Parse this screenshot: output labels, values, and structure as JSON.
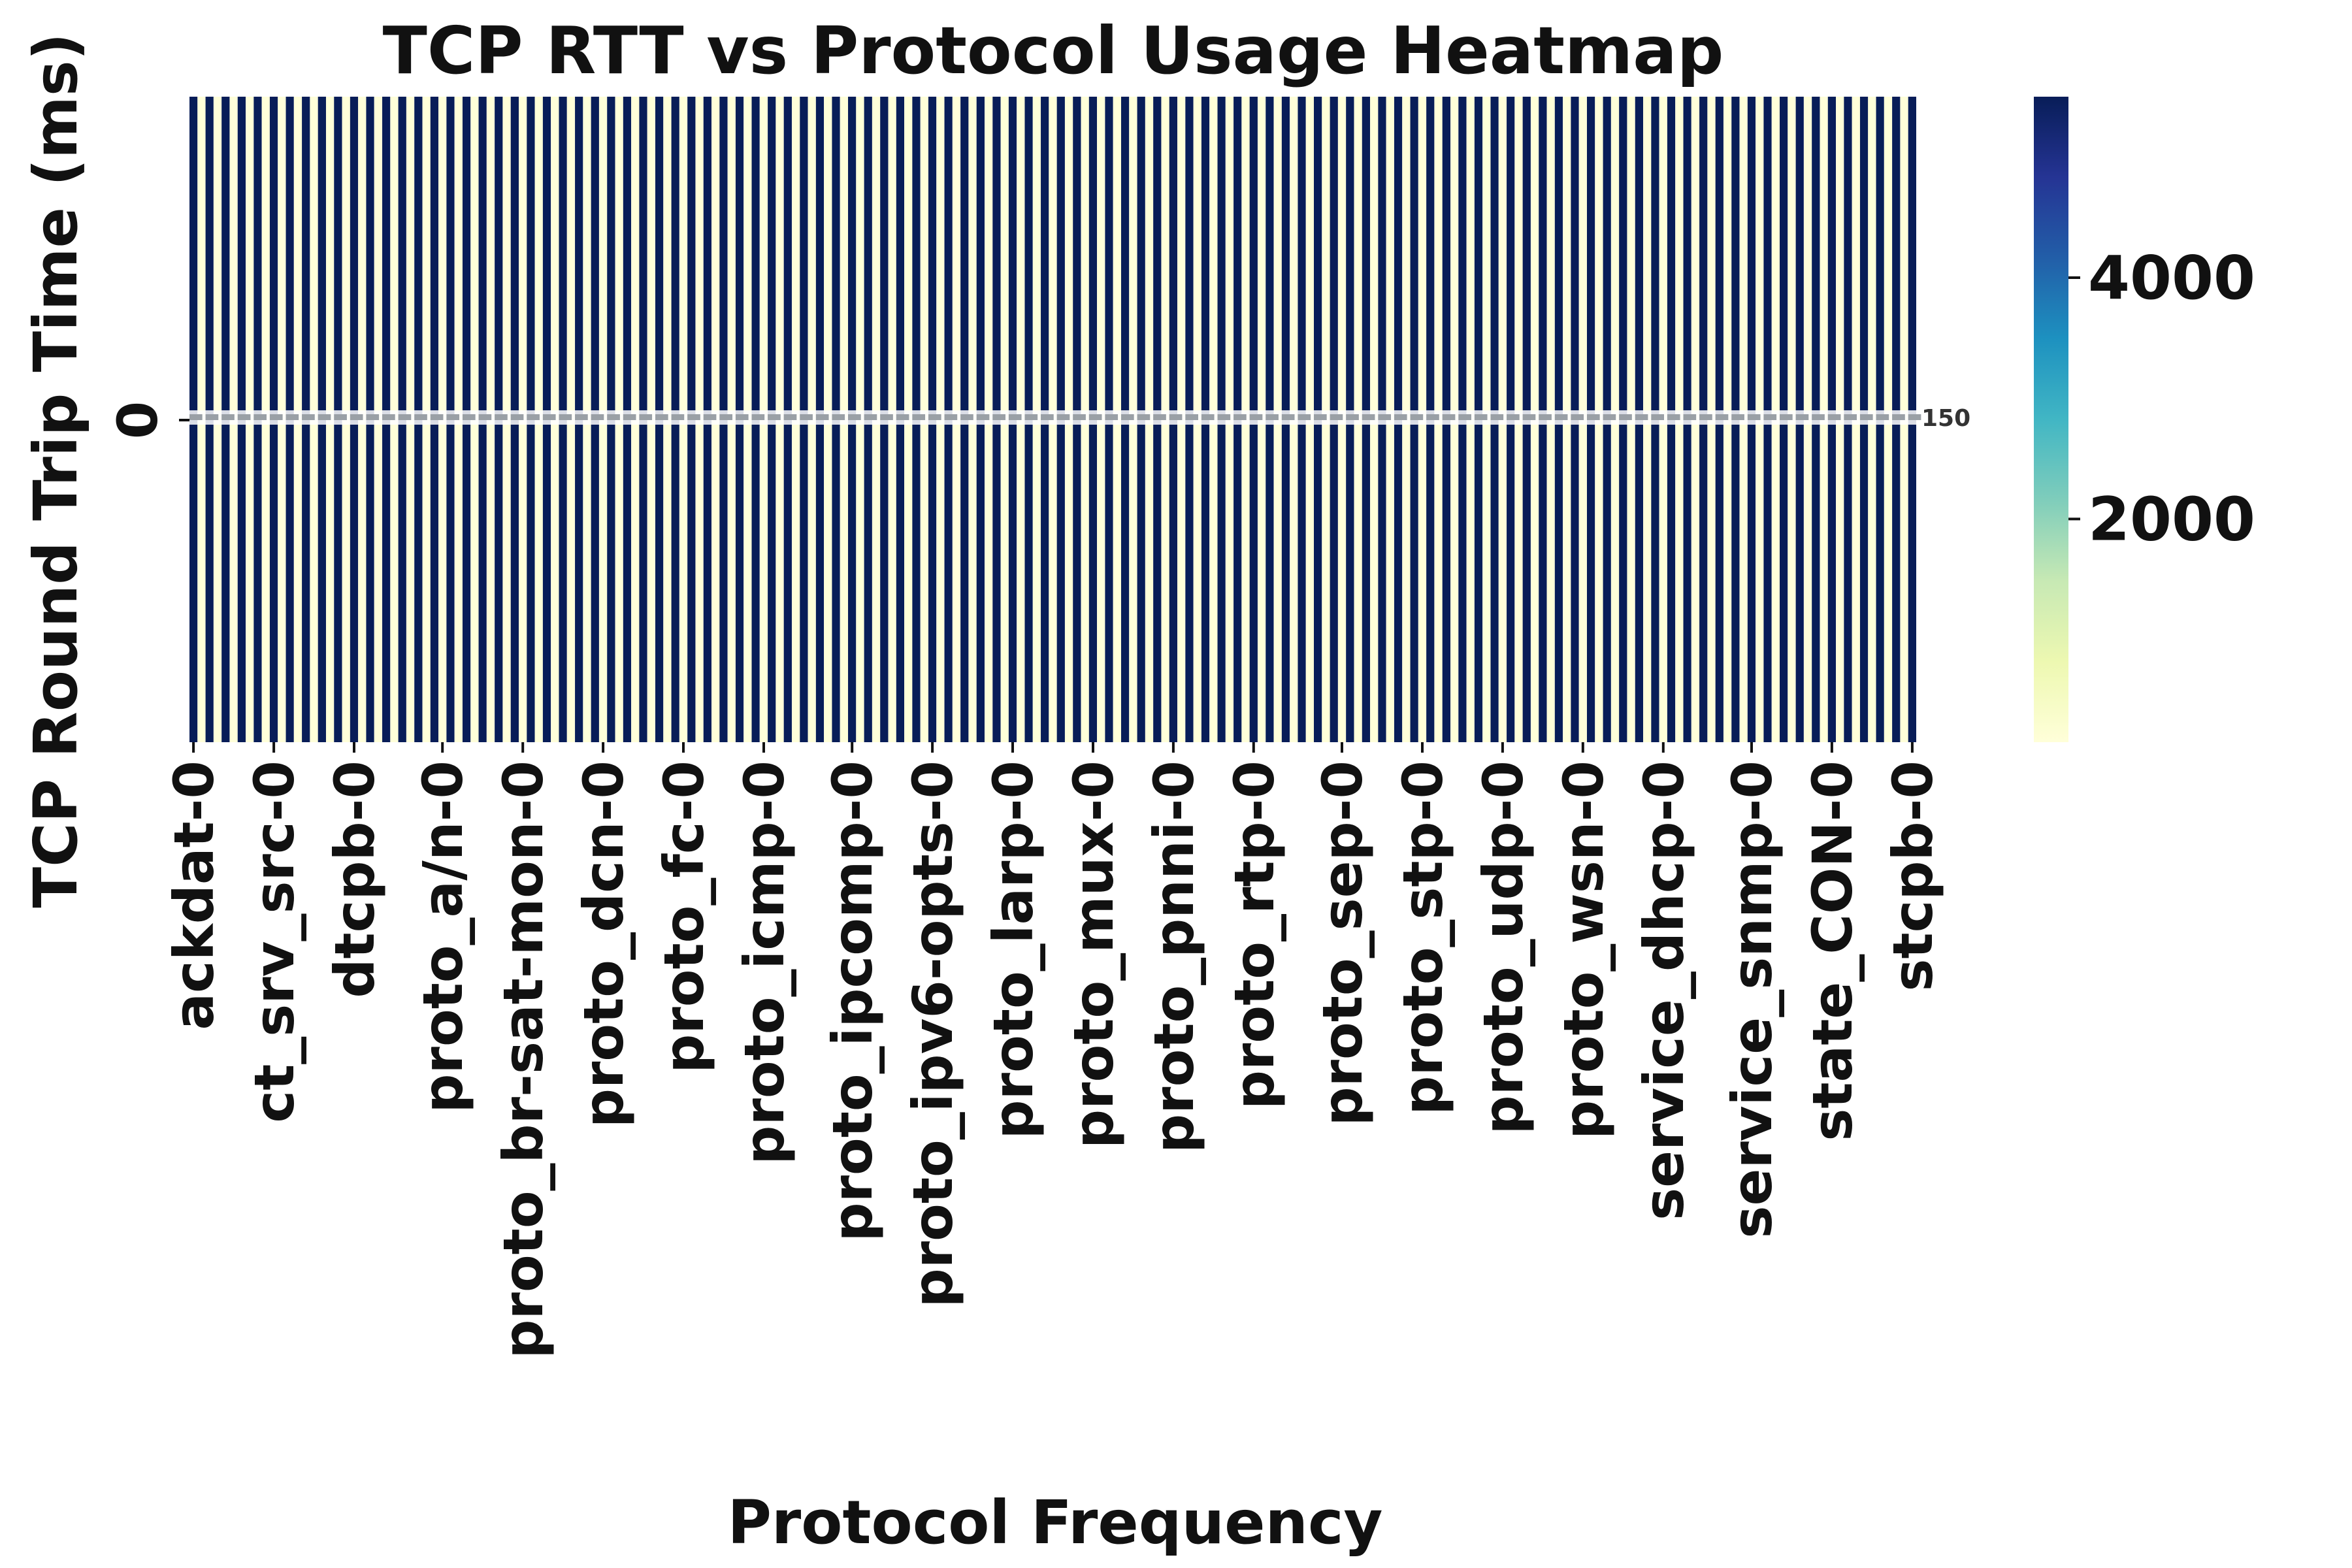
{
  "chart_data": {
    "type": "heatmap",
    "title": "TCP RTT vs Protocol Usage Heatmap",
    "xlabel": "Protocol Frequency",
    "ylabel": "TCP Round Trip Time (ms)",
    "y_categories": [
      "0"
    ],
    "x_tick_labels": [
      "ackdat-0",
      "ct_srv_src-0",
      "dtcpb-0",
      "proto_a/n-0",
      "proto_br-sat-mon-0",
      "proto_dcn-0",
      "proto_fc-0",
      "proto_icmp-0",
      "proto_ipcomp-0",
      "proto_ipv6-opts-0",
      "proto_larp-0",
      "proto_mux-0",
      "proto_pnni-0",
      "proto_rtp-0",
      "proto_sep-0",
      "proto_stp-0",
      "proto_udp-0",
      "proto_wsn-0",
      "service_dhcp-0",
      "service_snmp-0",
      "state_CON-0",
      "stcpb-0"
    ],
    "column_count": 215,
    "cell_value_pattern": [
      5500,
      150
    ],
    "annotation_text": "150",
    "colorbar": {
      "colormap": "YlGnBu",
      "range": [
        150,
        5500
      ],
      "ticks": [
        2000,
        4000
      ],
      "tick_labels": [
        "2000",
        "4000"
      ]
    },
    "grid": false
  },
  "colors": {
    "ylgnbu": [
      "#ffffd9",
      "#edf8b1",
      "#c7e9b4",
      "#7fcdbb",
      "#41b6c4",
      "#1d91c0",
      "#225ea8",
      "#253494",
      "#081d58"
    ],
    "cell_gap": "#ffffff"
  }
}
